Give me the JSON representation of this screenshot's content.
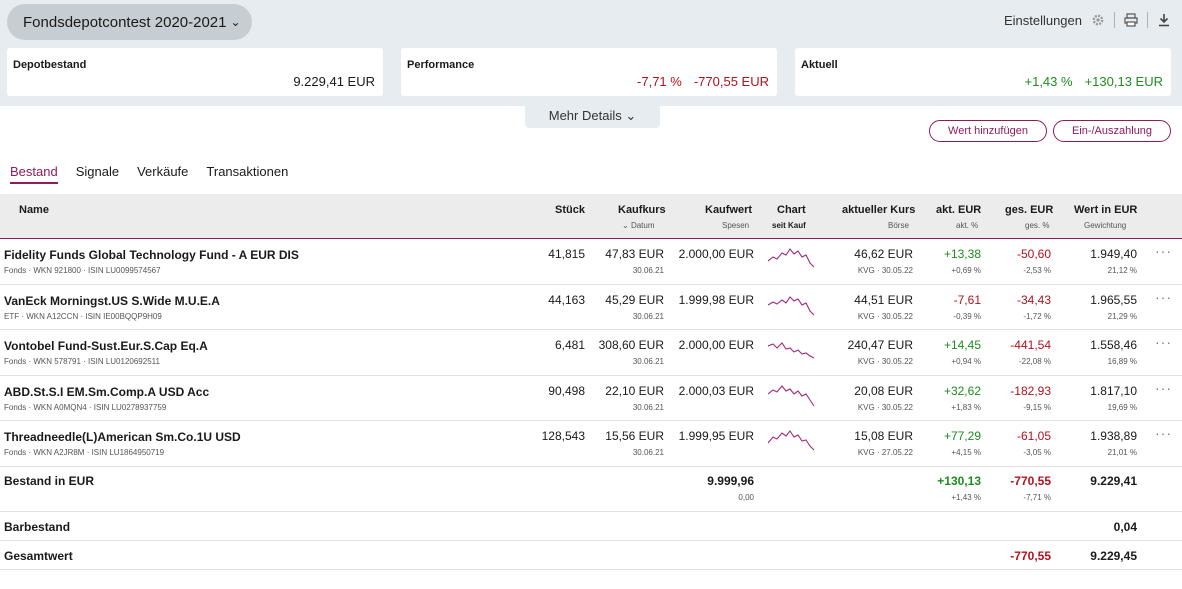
{
  "header": {
    "depot_name": "Fondsdepotcontest 2020-2021",
    "settings_label": "Einstellungen"
  },
  "cards": [
    {
      "label": "Depotbestand",
      "values": [
        "9.229,41 EUR"
      ],
      "tone": [
        "plain"
      ]
    },
    {
      "label": "Performance",
      "values": [
        "-7,71 %",
        "-770,55 EUR"
      ],
      "tone": [
        "neg",
        "neg"
      ]
    },
    {
      "label": "Aktuell",
      "values": [
        "+1,43 %",
        "+130,13 EUR"
      ],
      "tone": [
        "pos",
        "pos"
      ]
    }
  ],
  "mehr_details": "Mehr Details",
  "actions": {
    "add": "Wert hinzufügen",
    "cash": "Ein-/Auszahlung"
  },
  "tabs": [
    "Bestand",
    "Signale",
    "Verkäufe",
    "Transaktionen"
  ],
  "columns": {
    "name": "Name",
    "stueck": "Stück",
    "kaufkurs": "Kaufkurs",
    "kaufkurs_sub": "Datum",
    "kaufwert": "Kaufwert",
    "kaufwert_sub": "Spesen",
    "chart": "Chart",
    "chart_sub": "seit Kauf",
    "kurs": "aktueller Kurs",
    "kurs_sub": "Börse",
    "akt": "akt. EUR",
    "akt_sub": "akt. %",
    "ges": "ges. EUR",
    "ges_sub": "ges. %",
    "wert": "Wert in EUR",
    "wert_sub": "Gewichtung"
  },
  "rows": [
    {
      "name": "Fidelity Funds Global Technology Fund - A EUR DIS",
      "meta": "Fonds · WKN 921800 · ISIN LU0099574567",
      "stueck": "41,815",
      "kaufkurs": "47,83 EUR",
      "datum": "30.06.21",
      "kaufwert": "2.000,00 EUR",
      "kurs": "46,62 EUR",
      "boerse": "KVG · 30.05.22",
      "akt": "+13,38",
      "akt_pct": "+0,69 %",
      "akt_tone": "pos",
      "ges": "-50,60",
      "ges_pct": "-2,53 %",
      "wert": "1.949,40",
      "gewicht": "21,12 %"
    },
    {
      "name": "VanEck Morningst.US S.Wide M.U.E.A",
      "meta": "ETF · WKN A12CCN · ISIN IE00BQQP9H09",
      "stueck": "44,163",
      "kaufkurs": "45,29 EUR",
      "datum": "30.06.21",
      "kaufwert": "1.999,98 EUR",
      "kurs": "44,51 EUR",
      "boerse": "KVG · 30.05.22",
      "akt": "-7,61",
      "akt_pct": "-0,39 %",
      "akt_tone": "neg",
      "ges": "-34,43",
      "ges_pct": "-1,72 %",
      "wert": "1.965,55",
      "gewicht": "21,29 %"
    },
    {
      "name": "Vontobel Fund-Sust.Eur.S.Cap Eq.A",
      "meta": "Fonds · WKN 578791 · ISIN LU0120692511",
      "stueck": "6,481",
      "kaufkurs": "308,60 EUR",
      "datum": "30.06.21",
      "kaufwert": "2.000,00 EUR",
      "kurs": "240,47 EUR",
      "boerse": "KVG · 30.05.22",
      "akt": "+14,45",
      "akt_pct": "+0,94 %",
      "akt_tone": "pos",
      "ges": "-441,54",
      "ges_pct": "-22,08 %",
      "wert": "1.558,46",
      "gewicht": "16,89 %"
    },
    {
      "name": "ABD.St.S.I EM.Sm.Comp.A USD Acc",
      "meta": "Fonds · WKN A0MQN4 · ISIN LU0278937759",
      "stueck": "90,498",
      "kaufkurs": "22,10 EUR",
      "datum": "30.06.21",
      "kaufwert": "2.000,03 EUR",
      "kurs": "20,08 EUR",
      "boerse": "KVG · 30.05.22",
      "akt": "+32,62",
      "akt_pct": "+1,83 %",
      "akt_tone": "pos",
      "ges": "-182,93",
      "ges_pct": "-9,15 %",
      "wert": "1.817,10",
      "gewicht": "19,69 %"
    },
    {
      "name": "Threadneedle(L)American Sm.Co.1U USD",
      "meta": "Fonds · WKN A2JR8M · ISIN LU1864950719",
      "stueck": "128,543",
      "kaufkurs": "15,56 EUR",
      "datum": "30.06.21",
      "kaufwert": "1.999,95 EUR",
      "kurs": "15,08 EUR",
      "boerse": "KVG · 27.05.22",
      "akt": "+77,29",
      "akt_pct": "+4,15 %",
      "akt_tone": "pos",
      "ges": "-61,05",
      "ges_pct": "-3,05 %",
      "wert": "1.938,89",
      "gewicht": "21,01 %"
    }
  ],
  "totals": {
    "label": "Bestand in EUR",
    "kaufwert": "9.999,96",
    "spesen": "0,00",
    "akt": "+130,13",
    "akt_pct": "+1,43 %",
    "ges": "-770,55",
    "ges_pct": "-7,71 %",
    "wert": "9.229,41"
  },
  "cash": {
    "label": "Barbestand",
    "wert": "0,04"
  },
  "grand": {
    "label": "Gesamtwert",
    "ges": "-770,55",
    "wert": "9.229,45"
  },
  "colors": {
    "accent": "#8c1c5c",
    "negative": "#b0131e",
    "positive": "#1e8c1e"
  },
  "icons": [
    "chevron-down-icon",
    "gear-icon",
    "print-icon",
    "download-icon",
    "more-dots-icon"
  ]
}
